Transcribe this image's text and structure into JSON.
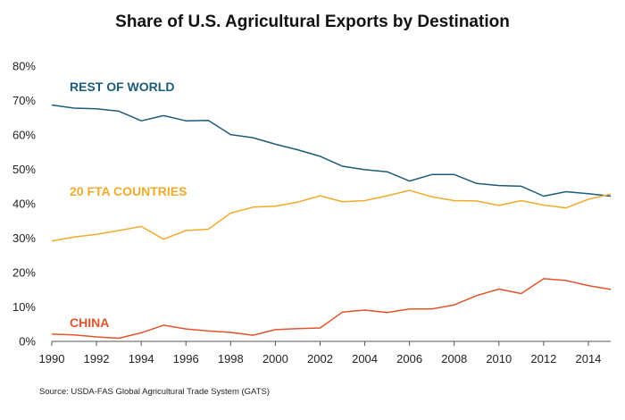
{
  "chart_data": {
    "type": "line",
    "title": "Share of U.S. Agricultural Exports by Destination",
    "source": "Source:  USDA-FAS Global Agricultural Trade System (GATS)",
    "xlabel": "",
    "ylabel": "",
    "ylim": [
      0,
      80
    ],
    "xlim": [
      1990,
      2015
    ],
    "y_ticks": [
      0,
      10,
      20,
      30,
      40,
      50,
      60,
      70,
      80
    ],
    "y_tick_labels": [
      "0%",
      "10%",
      "20%",
      "30%",
      "40%",
      "50%",
      "60%",
      "70%",
      "80%"
    ],
    "x_ticks": [
      1990,
      1992,
      1994,
      1996,
      1998,
      2000,
      2002,
      2004,
      2006,
      2008,
      2010,
      2012,
      2014
    ],
    "x_tick_labels": [
      "1990",
      "1992",
      "1994",
      "1996",
      "1998",
      "2000",
      "2002",
      "2004",
      "2006",
      "2008",
      "2010",
      "2012",
      "2014"
    ],
    "x": [
      1990,
      1991,
      1992,
      1993,
      1994,
      1995,
      1996,
      1997,
      1998,
      1999,
      2000,
      2001,
      2002,
      2003,
      2004,
      2005,
      2006,
      2007,
      2008,
      2009,
      2010,
      2011,
      2012,
      2013,
      2014,
      2015
    ],
    "series": [
      {
        "name": "REST OF WORLD",
        "color": "#1d5b7a",
        "values": [
          68.7,
          67.8,
          67.6,
          66.9,
          64.1,
          65.6,
          64.1,
          64.2,
          60.1,
          59.2,
          57.3,
          55.7,
          53.8,
          50.9,
          49.9,
          49.3,
          46.6,
          48.5,
          48.5,
          45.9,
          45.3,
          45.1,
          42.2,
          43.5,
          42.9,
          42.2
        ]
      },
      {
        "name": "20 FTA COUNTRIES",
        "color": "#f0ab2c",
        "values": [
          29.2,
          30.3,
          31.1,
          32.2,
          33.4,
          29.7,
          32.2,
          32.6,
          37.3,
          39.0,
          39.3,
          40.5,
          42.3,
          40.6,
          40.9,
          42.3,
          43.9,
          42.0,
          40.9,
          40.8,
          39.5,
          40.9,
          39.6,
          38.8,
          41.3,
          42.8
        ]
      },
      {
        "name": "CHINA",
        "color": "#e2542c",
        "values": [
          2.1,
          1.9,
          1.3,
          0.9,
          2.5,
          4.7,
          3.6,
          3.0,
          2.6,
          1.8,
          3.4,
          3.7,
          3.9,
          8.5,
          9.1,
          8.4,
          9.4,
          9.4,
          10.6,
          13.3,
          15.2,
          13.9,
          18.2,
          17.7,
          16.2,
          15.1
        ]
      }
    ]
  }
}
